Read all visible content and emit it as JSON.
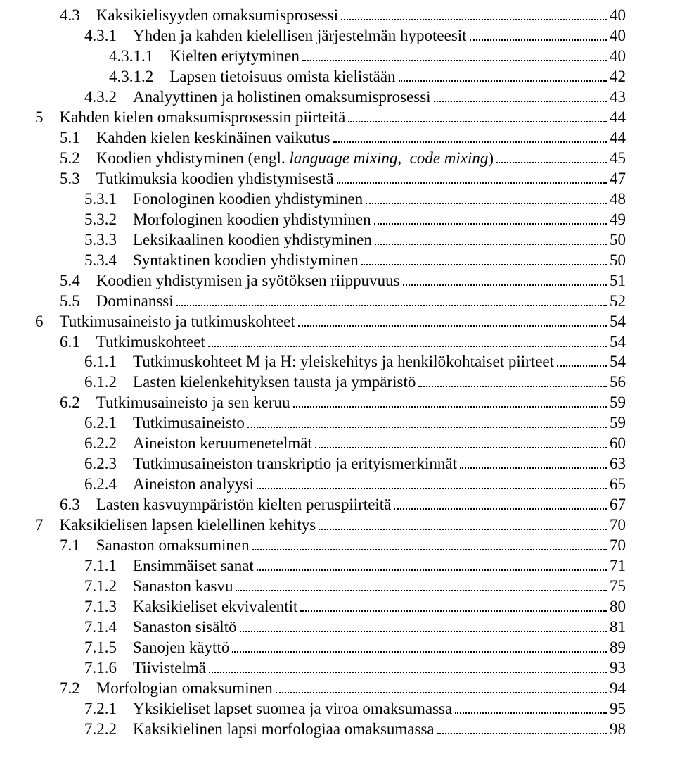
{
  "toc": [
    {
      "text": "4.3 Kaksikielisyyden omaksumisprosessi",
      "page": "40",
      "lvl": 1
    },
    {
      "text": "4.3.1 Yhden ja kahden kielellisen järjestelmän hypoteesit",
      "page": "40",
      "lvl": 2
    },
    {
      "text": "4.3.1.1 Kielten eriytyminen",
      "page": "40",
      "lvl": 3
    },
    {
      "text": "4.3.1.2 Lapsen tietoisuus omista kielistään",
      "page": "42",
      "lvl": 3
    },
    {
      "text": "4.3.2 Analyyttinen ja holistinen omaksumisprosessi",
      "page": "43",
      "lvl": 2
    },
    {
      "text": "5 Kahden kielen omaksumisprosessin piirteitä",
      "page": "44",
      "lvl": 0
    },
    {
      "text": "5.1 Kahden kielen keskinäinen vaikutus",
      "page": "44",
      "lvl": 1
    },
    {
      "html": "5.2 Koodien yhdistyminen (engl. <span class=\"italic\">language mixing, code mixing</span>)",
      "page": "45",
      "lvl": 1
    },
    {
      "text": "5.3 Tutkimuksia koodien yhdistymisestä",
      "page": "47",
      "lvl": 1
    },
    {
      "text": "5.3.1 Fonologinen koodien yhdistyminen",
      "page": "48",
      "lvl": 2
    },
    {
      "text": "5.3.2 Morfologinen koodien yhdistyminen",
      "page": "49",
      "lvl": 2
    },
    {
      "text": "5.3.3 Leksikaalinen koodien yhdistyminen",
      "page": "50",
      "lvl": 2
    },
    {
      "text": "5.3.4 Syntaktinen koodien yhdistyminen",
      "page": "50",
      "lvl": 2
    },
    {
      "text": "5.4 Koodien yhdistymisen ja syötöksen riippuvuus",
      "page": "51",
      "lvl": 1
    },
    {
      "text": "5.5 Dominanssi",
      "page": "52",
      "lvl": 1
    },
    {
      "text": "6 Tutkimusaineisto ja tutkimuskohteet",
      "page": "54",
      "lvl": 0
    },
    {
      "text": "6.1 Tutkimuskohteet",
      "page": "54",
      "lvl": 1
    },
    {
      "text": "6.1.1 Tutkimuskohteet M ja H: yleiskehitys ja henkilökohtaiset piirteet",
      "page": "54",
      "lvl": 2
    },
    {
      "text": "6.1.2 Lasten kielenkehityksen tausta ja ympäristö",
      "page": "56",
      "lvl": 2
    },
    {
      "text": "6.2 Tutkimusaineisto ja sen keruu",
      "page": "59",
      "lvl": 1
    },
    {
      "text": "6.2.1 Tutkimusaineisto",
      "page": "59",
      "lvl": 2
    },
    {
      "text": "6.2.2 Aineiston keruumenetelmät",
      "page": "60",
      "lvl": 2
    },
    {
      "text": "6.2.3 Tutkimusaineiston transkriptio ja erityismerkinnät",
      "page": "63",
      "lvl": 2
    },
    {
      "text": "6.2.4 Aineiston analyysi",
      "page": "65",
      "lvl": 2
    },
    {
      "text": "6.3 Lasten kasvuympäristön kielten peruspiirteitä",
      "page": "67",
      "lvl": 1
    },
    {
      "text": "7 Kaksikielisen lapsen kielellinen kehitys",
      "page": "70",
      "lvl": 0
    },
    {
      "text": "7.1 Sanaston omaksuminen",
      "page": "70",
      "lvl": 1
    },
    {
      "text": "7.1.1 Ensimmäiset sanat",
      "page": "71",
      "lvl": 2
    },
    {
      "text": "7.1.2 Sanaston kasvu",
      "page": "75",
      "lvl": 2
    },
    {
      "text": "7.1.3 Kaksikieliset ekvivalentit",
      "page": "80",
      "lvl": 2
    },
    {
      "text": "7.1.4 Sanaston sisältö",
      "page": "81",
      "lvl": 2
    },
    {
      "text": "7.1.5 Sanojen käyttö",
      "page": "89",
      "lvl": 2
    },
    {
      "text": "7.1.6 Tiivistelmä",
      "page": "93",
      "lvl": 2
    },
    {
      "text": "7.2 Morfologian omaksuminen",
      "page": "94",
      "lvl": 1
    },
    {
      "text": "7.2.1 Yksikieliset lapset suomea ja viroa omaksumassa",
      "page": "95",
      "lvl": 2
    },
    {
      "text": "7.2.2 Kaksikielinen lapsi morfologiaa omaksumassa",
      "page": "98",
      "lvl": 2
    }
  ]
}
